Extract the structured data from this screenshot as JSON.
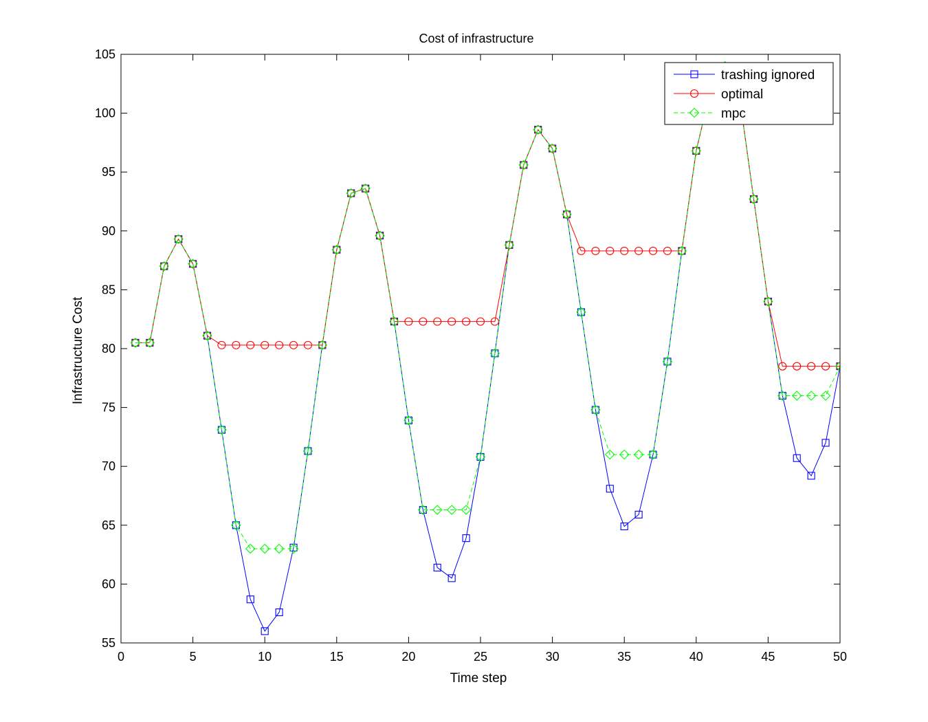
{
  "chart_data": {
    "type": "line",
    "title": "Cost of infrastructure",
    "xlabel": "Time step",
    "ylabel": "Infrastructure Cost",
    "xlim": [
      0,
      50
    ],
    "ylim": [
      55,
      105
    ],
    "xticks": [
      0,
      5,
      10,
      15,
      20,
      25,
      30,
      35,
      40,
      45,
      50
    ],
    "yticks": [
      55,
      60,
      65,
      70,
      75,
      80,
      85,
      90,
      95,
      100,
      105
    ],
    "grid": false,
    "legend_position": "top-right",
    "x": [
      1,
      2,
      3,
      4,
      5,
      6,
      7,
      8,
      9,
      10,
      11,
      12,
      13,
      14,
      15,
      16,
      17,
      18,
      19,
      20,
      21,
      22,
      23,
      24,
      25,
      26,
      27,
      28,
      29,
      30,
      31,
      32,
      33,
      34,
      35,
      36,
      37,
      38,
      39,
      40,
      41,
      42,
      43,
      44,
      45,
      46,
      47,
      48,
      49,
      50
    ],
    "series": [
      {
        "name": "trashing ignored",
        "color": "#0000ff",
        "marker": "square",
        "dash": "solid",
        "values": [
          80.5,
          80.5,
          87.0,
          89.3,
          87.2,
          81.1,
          73.1,
          65.0,
          58.7,
          56.0,
          57.6,
          63.1,
          71.3,
          80.3,
          88.4,
          93.2,
          93.6,
          89.6,
          82.3,
          73.9,
          66.3,
          61.4,
          60.5,
          63.9,
          70.8,
          79.6,
          88.8,
          95.6,
          98.6,
          97.0,
          91.4,
          83.1,
          74.8,
          68.1,
          64.9,
          65.9,
          71.0,
          78.9,
          88.3,
          96.8,
          102.0,
          104.0,
          101.5,
          92.7,
          84.0,
          76.0,
          70.7,
          69.2,
          72.0,
          78.5
        ]
      },
      {
        "name": "optimal",
        "color": "#ff0000",
        "marker": "circle",
        "dash": "solid",
        "values": [
          80.5,
          80.5,
          87.0,
          89.3,
          87.2,
          81.1,
          80.3,
          80.3,
          80.3,
          80.3,
          80.3,
          80.3,
          80.3,
          80.3,
          88.4,
          93.2,
          93.6,
          89.6,
          82.3,
          82.3,
          82.3,
          82.3,
          82.3,
          82.3,
          82.3,
          82.3,
          88.8,
          95.6,
          98.6,
          97.0,
          91.4,
          88.3,
          88.3,
          88.3,
          88.3,
          88.3,
          88.3,
          88.3,
          88.3,
          96.8,
          102.0,
          104.0,
          101.5,
          92.7,
          84.0,
          78.5,
          78.5,
          78.5,
          78.5,
          78.5
        ]
      },
      {
        "name": "mpc",
        "color": "#00ff00",
        "marker": "diamond",
        "dash": "dashed",
        "values": [
          80.5,
          80.5,
          87.0,
          89.3,
          87.2,
          81.1,
          73.1,
          65.0,
          63.0,
          63.0,
          63.0,
          63.0,
          71.3,
          80.3,
          88.4,
          93.2,
          93.6,
          89.6,
          82.3,
          73.9,
          66.3,
          66.3,
          66.3,
          66.3,
          70.8,
          79.6,
          88.8,
          95.6,
          98.6,
          97.0,
          91.4,
          83.1,
          74.8,
          71.0,
          71.0,
          71.0,
          71.0,
          78.9,
          88.3,
          96.8,
          102.0,
          104.0,
          101.5,
          92.7,
          84.0,
          76.0,
          76.0,
          76.0,
          76.0,
          78.5
        ]
      }
    ]
  }
}
